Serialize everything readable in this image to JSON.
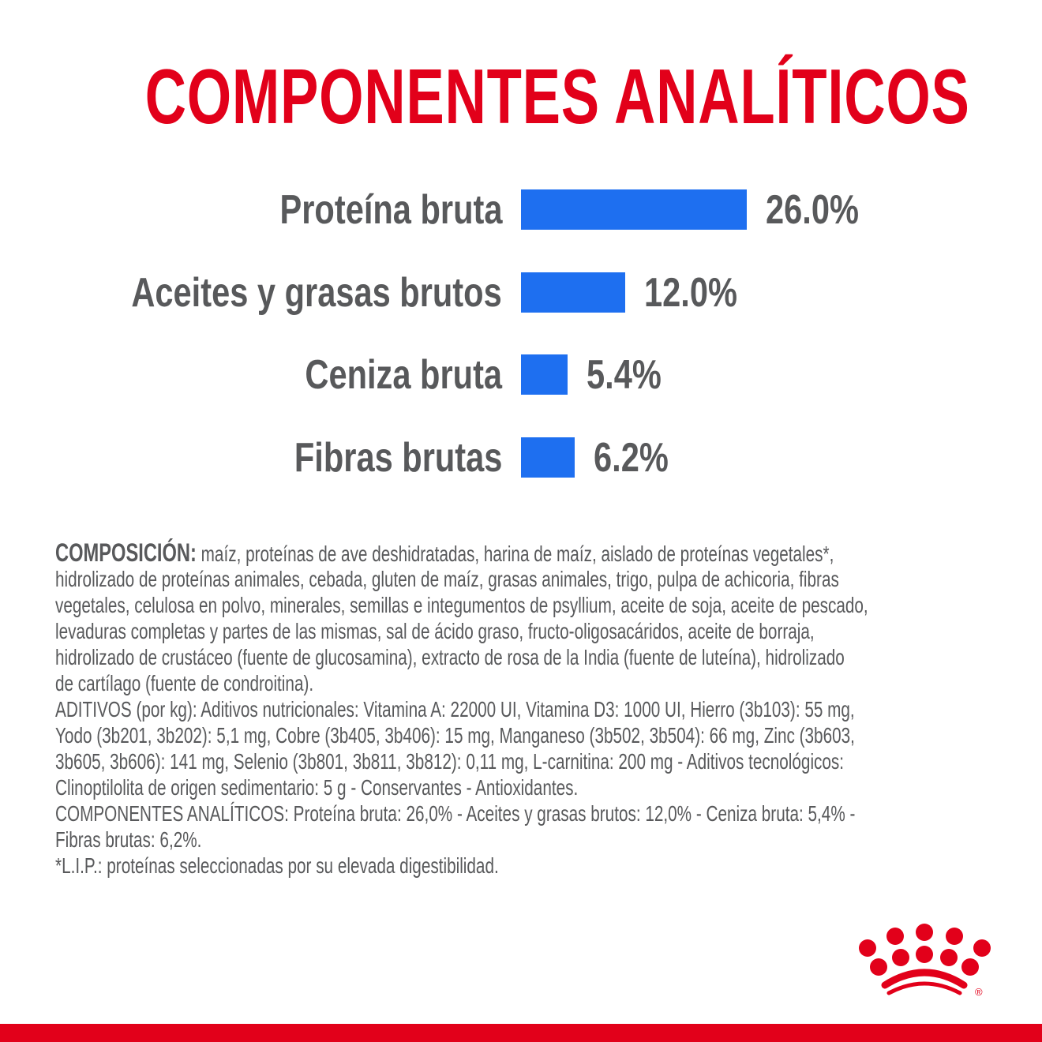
{
  "colors": {
    "title": "#e2001a",
    "bar": "#1e6ff0",
    "text": "#58595b",
    "brand": "#e2001a"
  },
  "chart_data": {
    "type": "bar",
    "orientation": "horizontal",
    "title": "COMPONENTES ANALÍTICOS",
    "categories": [
      "Proteína bruta",
      "Aceites y grasas brutos",
      "Ceniza bruta",
      "Fibras brutas"
    ],
    "values": [
      26.0,
      12.0,
      5.4,
      6.2
    ],
    "value_labels": [
      "26.0%",
      "12.0%",
      "5.4%",
      "6.2%"
    ],
    "unit": "%",
    "grid": false
  },
  "composition": {
    "heading": "COMPOSICIÓN:",
    "lines": [
      " maíz, proteínas de ave deshidratadas, harina de maíz, aislado de proteínas vegetales*,",
      "hidrolizado de proteínas animales, cebada, gluten de maíz, grasas animales, trigo, pulpa de achicoria, fibras",
      "vegetales, celulosa en polvo, minerales, semillas e integumentos de psyllium, aceite de soja, aceite de pescado,",
      "levaduras completas y partes de las mismas, sal de ácido graso, fructo-oligosacáridos, aceite de borraja,",
      "hidrolizado de crustáceo (fuente de glucosamina), extracto de rosa de la India (fuente de luteína), hidrolizado",
      "de cartílago (fuente de condroitina).",
      "ADITIVOS (por kg): Aditivos nutricionales: Vitamina A: 22000 UI, Vitamina D3: 1000 UI, Hierro (3b103): 55 mg,",
      "Yodo (3b201, 3b202): 5,1 mg, Cobre (3b405, 3b406): 15 mg, Manganeso (3b502, 3b504): 66 mg, Zinc (3b603,",
      "3b605, 3b606): 141 mg, Selenio (3b801, 3b811, 3b812): 0,11 mg, L-carnitina: 200 mg - Aditivos tecnológicos:",
      "Clinoptilolita de origen sedimentario: 5 g - Conservantes - Antioxidantes.",
      "COMPONENTES ANALÍTICOS: Proteína bruta: 26,0% - Aceites y grasas brutos: 12,0% - Ceniza bruta: 5,4% -",
      "Fibras brutas: 6,2%.",
      "*L.I.P.: proteínas seleccionadas por su elevada digestibilidad."
    ]
  },
  "logo": {
    "name": "crown-logo",
    "registered": "®"
  }
}
